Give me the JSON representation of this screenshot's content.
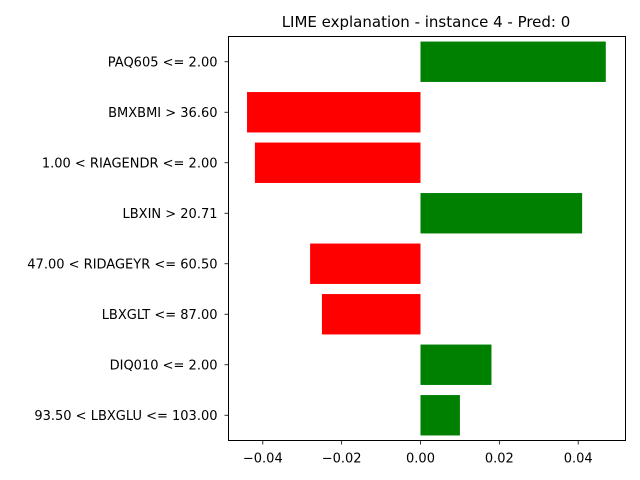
{
  "chart_data": {
    "type": "bar",
    "orientation": "horizontal",
    "title": "LIME explanation - instance 4 - Pred: 0",
    "xlabel": "",
    "ylabel": "",
    "categories": [
      "PAQ605 <= 2.00",
      "BMXBMI > 36.60",
      "1.00 < RIAGENDR <= 2.00",
      "LBXIN > 20.71",
      "47.00 < RIDAGEYR <= 60.50",
      "LBXGLT <= 87.00",
      "DIQ010 <= 2.00",
      "93.50 < LBXGLU <= 103.00"
    ],
    "values": [
      0.047,
      -0.044,
      -0.042,
      0.041,
      -0.028,
      -0.025,
      0.018,
      0.01
    ],
    "xlim": [
      -0.0487,
      0.052
    ],
    "xticks": [
      -0.04,
      -0.02,
      0.0,
      0.02,
      0.04
    ],
    "xtick_labels": [
      "−0.04",
      "−0.02",
      "0.00",
      "0.02",
      "0.04"
    ],
    "grid": false,
    "legend": "none",
    "colors": {
      "positive": "#008000",
      "negative": "#ff0000"
    }
  }
}
